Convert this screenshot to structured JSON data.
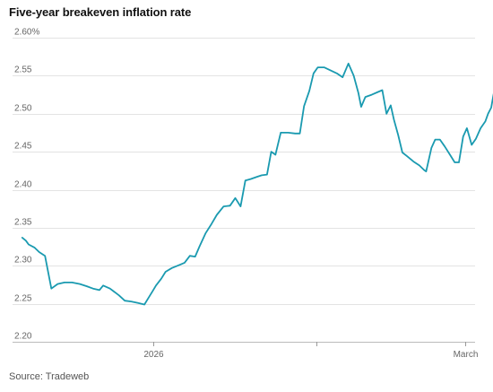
{
  "title": "Five-year breakeven inflation rate",
  "source": "Source: Tradeweb",
  "colors": {
    "line": "#1a9ab0",
    "grid": "#e3e3e3",
    "axis": "#bbbbbb",
    "text": "#666666"
  },
  "chart_data": {
    "type": "line",
    "title": "Five-year breakeven inflation rate",
    "xlabel": "",
    "ylabel": "",
    "ylim": [
      2.2,
      2.6
    ],
    "y_ticks": [
      2.2,
      2.25,
      2.3,
      2.35,
      2.4,
      2.45,
      2.5,
      2.55,
      2.6
    ],
    "y_tick_labels": [
      "2.20",
      "2.25",
      "2.30",
      "2.35",
      "2.40",
      "2.45",
      "2.50",
      "2.55",
      "2.60%"
    ],
    "x_ticks": [
      {
        "day": 0,
        "label": "2026"
      },
      {
        "day": 59,
        "label": "March"
      }
    ],
    "x_minor_ticks": [
      31
    ],
    "x_unit": "days from January 1, 2026",
    "grid": true,
    "end_marker": true,
    "series": [
      {
        "values": [
          [
            -24.7,
            2.337
          ],
          [
            -24.0,
            2.333
          ],
          [
            -23.5,
            2.328
          ],
          [
            -22.4,
            2.324
          ],
          [
            -21.5,
            2.318
          ],
          [
            -20.4,
            2.313
          ],
          [
            -19.2,
            2.27
          ],
          [
            -18.0,
            2.276
          ],
          [
            -16.7,
            2.278
          ],
          [
            -15.3,
            2.278
          ],
          [
            -13.8,
            2.276
          ],
          [
            -12.5,
            2.273
          ],
          [
            -11.3,
            2.27
          ],
          [
            -10.1,
            2.268
          ],
          [
            -9.4,
            2.274
          ],
          [
            -8.1,
            2.27
          ],
          [
            -6.4,
            2.261
          ],
          [
            -5.3,
            2.254
          ],
          [
            -4.1,
            2.253
          ],
          [
            -2.8,
            2.251
          ],
          [
            -1.6,
            2.249
          ],
          [
            -0.8,
            2.258
          ],
          [
            0.0,
            2.267
          ],
          [
            0.6,
            2.274
          ],
          [
            1.6,
            2.283
          ],
          [
            2.4,
            2.292
          ],
          [
            3.6,
            2.297
          ],
          [
            5.0,
            2.301
          ],
          [
            6.0,
            2.304
          ],
          [
            7.0,
            2.313
          ],
          [
            8.0,
            2.312
          ],
          [
            8.8,
            2.325
          ],
          [
            10.0,
            2.343
          ],
          [
            11.1,
            2.355
          ],
          [
            12.1,
            2.367
          ],
          [
            13.4,
            2.378
          ],
          [
            14.6,
            2.379
          ],
          [
            15.6,
            2.389
          ],
          [
            16.6,
            2.378
          ],
          [
            17.5,
            2.412
          ],
          [
            18.5,
            2.414
          ],
          [
            19.7,
            2.417
          ],
          [
            20.6,
            2.419
          ],
          [
            21.6,
            2.42
          ],
          [
            22.4,
            2.45
          ],
          [
            23.2,
            2.446
          ],
          [
            24.2,
            2.475
          ],
          [
            25.6,
            2.475
          ],
          [
            26.9,
            2.474
          ],
          [
            27.8,
            2.474
          ],
          [
            28.6,
            2.51
          ],
          [
            29.6,
            2.53
          ],
          [
            30.4,
            2.553
          ],
          [
            31.2,
            2.561
          ],
          [
            32.4,
            2.561
          ],
          [
            33.6,
            2.557
          ],
          [
            34.8,
            2.553
          ],
          [
            35.9,
            2.548
          ],
          [
            37.0,
            2.566
          ],
          [
            38.0,
            2.55
          ],
          [
            38.9,
            2.527
          ],
          [
            39.4,
            2.509
          ],
          [
            40.2,
            2.522
          ],
          [
            41.4,
            2.525
          ],
          [
            42.4,
            2.528
          ],
          [
            43.4,
            2.531
          ],
          [
            44.2,
            2.5
          ],
          [
            45.0,
            2.511
          ],
          [
            45.6,
            2.492
          ],
          [
            46.4,
            2.472
          ],
          [
            47.2,
            2.449
          ],
          [
            48.1,
            2.444
          ],
          [
            49.3,
            2.437
          ],
          [
            50.4,
            2.432
          ],
          [
            51.3,
            2.426
          ],
          [
            51.7,
            2.424
          ],
          [
            52.7,
            2.455
          ],
          [
            53.4,
            2.466
          ],
          [
            54.3,
            2.466
          ],
          [
            55.2,
            2.457
          ],
          [
            56.2,
            2.446
          ],
          [
            57.1,
            2.436
          ],
          [
            57.9,
            2.436
          ],
          [
            58.7,
            2.47
          ],
          [
            59.4,
            2.481
          ],
          [
            60.3,
            2.459
          ],
          [
            61.1,
            2.467
          ],
          [
            62.0,
            2.481
          ],
          [
            62.9,
            2.49
          ],
          [
            63.4,
            2.5
          ],
          [
            64.0,
            2.508
          ],
          [
            64.4,
            2.524
          ],
          [
            64.8,
            2.537
          ]
        ]
      }
    ]
  }
}
